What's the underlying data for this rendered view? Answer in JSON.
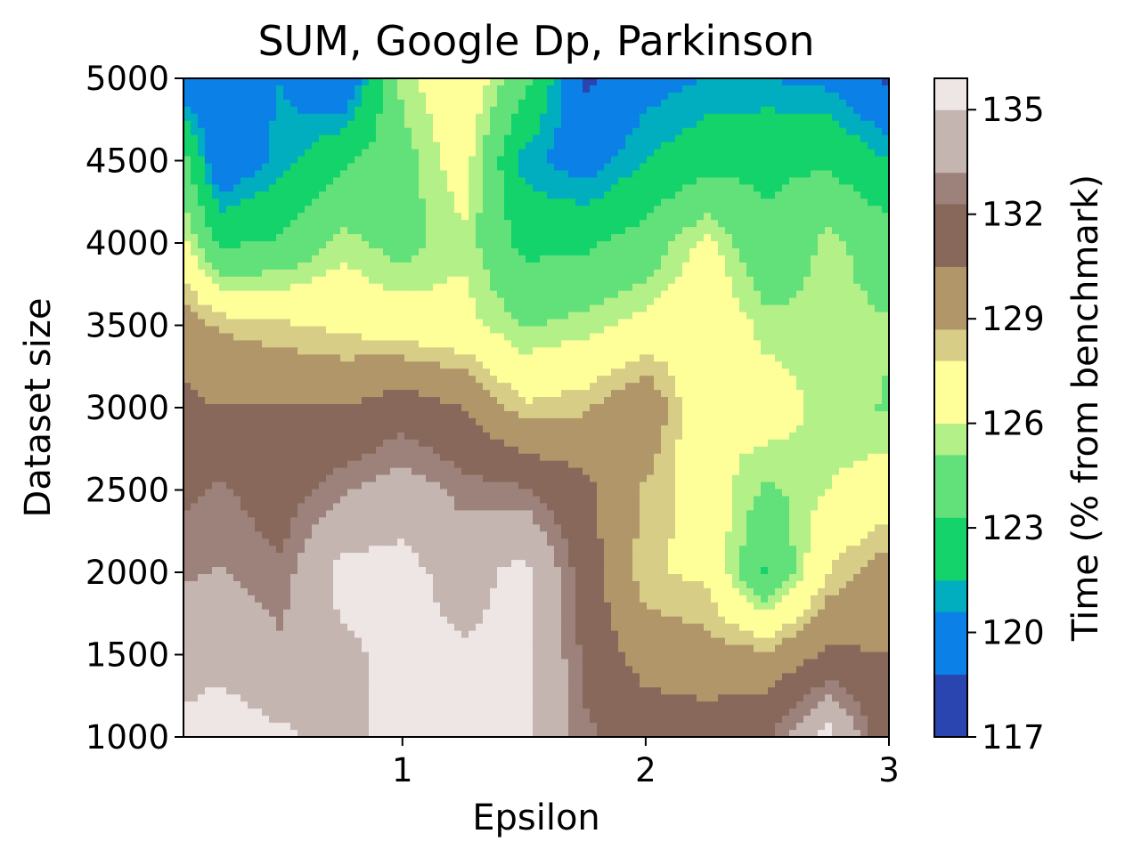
{
  "chart_data": {
    "type": "heatmap",
    "subtype": "filled-contour",
    "title": "SUM, Google Dp, Parkinson",
    "xlabel": "Epsilon",
    "ylabel": "Dataset size",
    "colorbar_label": "Time (% from benchmark)",
    "xlim": [
      0.1,
      3.0
    ],
    "ylim": [
      1000,
      5000
    ],
    "x_ticks": [
      "1",
      "2",
      "3"
    ],
    "x_tick_values": [
      1,
      2,
      3
    ],
    "y_ticks": [
      "1000",
      "1500",
      "2000",
      "2500",
      "3000",
      "3500",
      "4000",
      "4500",
      "5000"
    ],
    "y_tick_values": [
      1000,
      1500,
      2000,
      2500,
      3000,
      3500,
      4000,
      4500,
      5000
    ],
    "colorbar_ticks": [
      "117",
      "120",
      "123",
      "126",
      "129",
      "132",
      "135"
    ],
    "colorbar_tick_values": [
      117,
      120,
      123,
      126,
      129,
      132,
      135
    ],
    "levels": [
      117,
      117.9,
      118.8,
      119.7,
      120.6,
      121.5,
      122.4,
      123.3,
      124.2,
      125.1,
      126.0,
      126.9,
      127.8,
      128.7,
      129.6,
      130.5,
      131.4,
      132.3,
      133.2,
      134.1,
      135.0,
      135.9
    ],
    "colormap": "terrain",
    "colors": [
      "#2a44b0",
      "#0b80e6",
      "#00aebf",
      "#13d36a",
      "#62e07a",
      "#b3f088",
      "#ffff99",
      "#d7cd87",
      "#b09669",
      "#87685a",
      "#9d827c",
      "#c5b5b0",
      "#ede6e5"
    ],
    "x": [
      0.1,
      0.25,
      0.5,
      0.75,
      1.0,
      1.25,
      1.5,
      1.75,
      2.0,
      2.25,
      2.5,
      2.75,
      3.0
    ],
    "y": [
      1000,
      1500,
      2000,
      2500,
      3000,
      3500,
      4000,
      4500,
      5000
    ],
    "z": [
      [
        135.5,
        135.8,
        135.3,
        134.5,
        135.6,
        135.6,
        135.6,
        132.5,
        131.8,
        131.5,
        132.1,
        135.7,
        131.0
      ],
      [
        134.2,
        134.6,
        133.5,
        134.6,
        135.6,
        135.2,
        135.6,
        132.0,
        129.6,
        129.3,
        129.0,
        130.8,
        130.5
      ],
      [
        133.0,
        133.3,
        132.5,
        135.6,
        135.6,
        134.2,
        135.6,
        131.5,
        128.0,
        127.5,
        123.0,
        127.8,
        129.5
      ],
      [
        132.0,
        132.5,
        131.5,
        133.0,
        134.0,
        132.8,
        132.5,
        131.0,
        128.5,
        126.9,
        124.8,
        126.0,
        126.8
      ],
      [
        131.0,
        130.5,
        130.5,
        130.5,
        131.5,
        130.5,
        128.0,
        128.5,
        130.2,
        126.0,
        126.9,
        125.5,
        125.0
      ],
      [
        129.5,
        128.5,
        128.0,
        127.5,
        126.9,
        126.5,
        125.0,
        125.5,
        126.5,
        127.5,
        125.5,
        125.5,
        125.2
      ],
      [
        126.5,
        123.0,
        123.5,
        125.5,
        124.5,
        125.8,
        122.8,
        123.0,
        124.0,
        126.5,
        123.5,
        125.5,
        124.2
      ],
      [
        124.0,
        119.0,
        121.0,
        123.0,
        124.5,
        126.8,
        121.0,
        119.8,
        121.5,
        122.5,
        123.0,
        123.0,
        121.5
      ],
      [
        119.0,
        119.5,
        120.6,
        118.5,
        125.5,
        127.5,
        124.0,
        118.5,
        120.0,
        120.6,
        120.6,
        120.2,
        118.5
      ]
    ]
  }
}
